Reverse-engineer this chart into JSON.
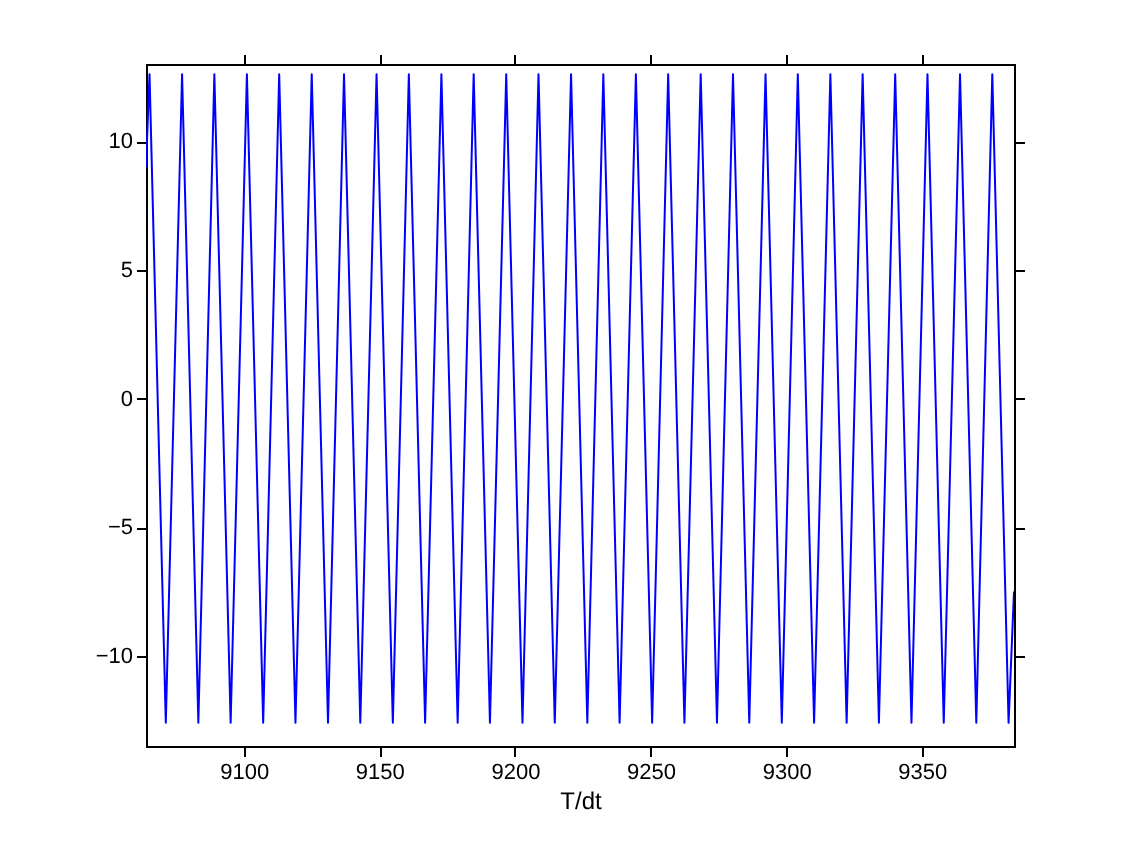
{
  "chart_data": {
    "type": "line",
    "xlabel": "T/dt",
    "x": [
      9064,
      9065.3,
      9071.3,
      9077.3,
      9083.3,
      9089.2,
      9095.2,
      9101.2,
      9107.2,
      9113.1,
      9119.1,
      9125.1,
      9131.1,
      9137.0,
      9143.0,
      9149.0,
      9155.0,
      9160.9,
      9166.9,
      9172.9,
      9178.9,
      9184.8,
      9190.8,
      9196.8,
      9202.8,
      9208.7,
      9214.7,
      9220.7,
      9226.7,
      9232.6,
      9238.6,
      9244.6,
      9250.6,
      9256.5,
      9262.5,
      9268.5,
      9274.5,
      9280.4,
      9286.4,
      9292.4,
      9298.4,
      9304.3,
      9310.3,
      9316.3,
      9322.3,
      9328.2,
      9334.2,
      9340.2,
      9346.2,
      9352.1,
      9358.1,
      9364.1,
      9370.1,
      9376.0,
      9382.0,
      9384
    ],
    "series": [
      {
        "color": "#0000ff",
        "values": [
          9,
          12.6,
          -12.6,
          12.6,
          -12.6,
          12.6,
          -12.6,
          12.6,
          -12.6,
          12.6,
          -12.6,
          12.6,
          -12.6,
          12.6,
          -12.6,
          12.6,
          -12.6,
          12.6,
          -12.6,
          12.6,
          -12.6,
          12.6,
          -12.6,
          12.6,
          -12.6,
          12.6,
          -12.6,
          12.6,
          -12.6,
          12.6,
          -12.6,
          12.6,
          -12.6,
          12.6,
          -12.6,
          12.6,
          -12.6,
          12.6,
          -12.6,
          12.6,
          -12.6,
          12.6,
          -12.6,
          12.6,
          -12.6,
          12.6,
          -12.6,
          12.6,
          -12.6,
          12.6,
          -12.6,
          12.6,
          -12.6,
          12.6,
          -12.6,
          -7.5
        ]
      }
    ],
    "xlim": [
      9064,
      9384
    ],
    "xticks": [
      9100,
      9150,
      9200,
      9250,
      9300,
      9350
    ],
    "ylim": [
      -13.5,
      13
    ],
    "yticks": [
      -10,
      -5,
      0,
      5,
      10
    ],
    "grid": false,
    "marker": "none",
    "line_style": "solid"
  }
}
